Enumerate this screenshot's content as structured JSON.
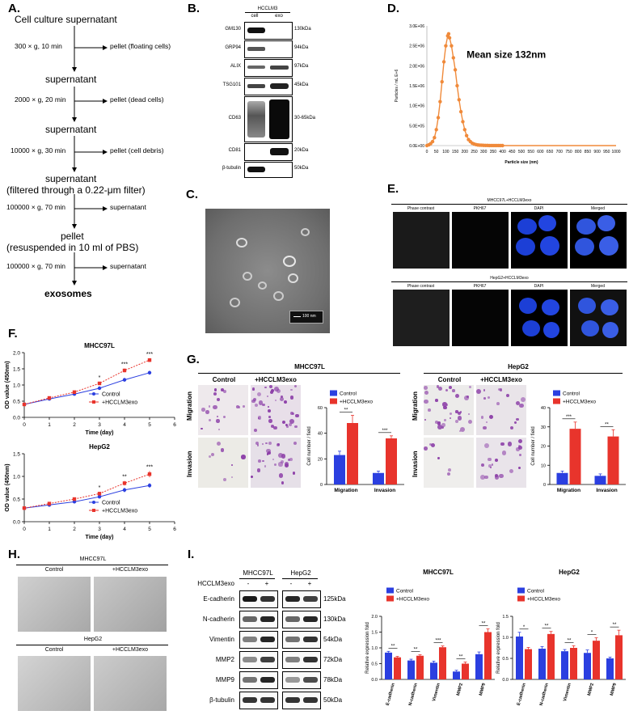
{
  "labels": {
    "A": "A.",
    "B": "B.",
    "C": "C.",
    "D": "D.",
    "E": "E.",
    "F": "F.",
    "G": "G.",
    "H": "H.",
    "I": "I."
  },
  "panelA": {
    "steps": [
      {
        "text": "Cell culture supernatant"
      },
      {
        "text": "supernatant"
      },
      {
        "text": "supernatant"
      },
      {
        "text": "supernatant"
      },
      {
        "text": "(filtered through a 0.22-μm filter)"
      },
      {
        "text": "pellet"
      },
      {
        "text": "(resuspended in 10 ml of PBS)"
      },
      {
        "text": "exosomes"
      }
    ],
    "spins": [
      {
        "cond": "300 × g, 10 min",
        "side": "pellet (floating cells)"
      },
      {
        "cond": "2000 × g, 20 min",
        "side": "pellet (dead cells)"
      },
      {
        "cond": "10000 × g, 30 min",
        "side": "pellet (cell debris)"
      },
      {
        "cond": "100000 × g, 70 min",
        "side": "supernatant"
      },
      {
        "cond": "100000 × g, 70 min",
        "side": "supernatant"
      }
    ]
  },
  "panelB": {
    "header": "HCCLM3",
    "cols": [
      "cell",
      "exo"
    ],
    "rows": [
      {
        "name": "GM130",
        "size": "130kDa"
      },
      {
        "name": "GRP94",
        "size": "94kDa"
      },
      {
        "name": "ALIX",
        "size": "97kDa"
      },
      {
        "name": "TSG101",
        "size": "45kDa"
      },
      {
        "name": "CD63",
        "size": "30-65kDa"
      },
      {
        "name": "CD81",
        "size": "20kDa"
      },
      {
        "name": "β-tubulin",
        "size": "50kDa"
      }
    ]
  },
  "panelC": {
    "scalebar": "100 nm"
  },
  "panelE": {
    "groups": [
      {
        "title": "MHCC97L+HCCLM3exo"
      },
      {
        "title": "HepG2+HCCLM3exo"
      }
    ],
    "cols": [
      "Phase contrast",
      "PKH67",
      "DAPI",
      "Merged"
    ]
  },
  "panelG": {
    "groups": [
      {
        "title": "MHCC97L"
      },
      {
        "title": "HepG2"
      }
    ],
    "cols": [
      "Control",
      "+HCCLM3exo"
    ],
    "rows": [
      "Migration",
      "Invasion"
    ]
  },
  "panelH": {
    "groups": [
      {
        "title": "MHCC97L"
      },
      {
        "title": "HepG2"
      }
    ],
    "cols": [
      "Control",
      "+HCCLM3exo"
    ]
  },
  "panelI": {
    "treat_label": "HCCLM3exo",
    "groups": [
      "MHCC97L",
      "HepG2"
    ],
    "signs": [
      "-",
      "+",
      "-",
      "+"
    ],
    "rows": [
      {
        "name": "E-cadherin",
        "size": "125kDa"
      },
      {
        "name": "N-cadherin",
        "size": "130kDa"
      },
      {
        "name": "Vimentin",
        "size": "54kDa"
      },
      {
        "name": "MMP2",
        "size": "72kDa"
      },
      {
        "name": "MMP9",
        "size": "78kDa"
      },
      {
        "name": "β-tubulin",
        "size": "50kDa"
      }
    ]
  },
  "colors": {
    "control": "#2b3fe0",
    "treated": "#e8342c",
    "nta": "#f08a3a"
  },
  "chart_data": [
    {
      "id": "D",
      "type": "line",
      "xlabel": "Particle size (nm)",
      "ylabel": "Particles / mL E+6",
      "xlim": [
        0,
        1000
      ],
      "ylim": [
        0,
        3000000
      ],
      "xticks": [
        "0",
        "50",
        "100",
        "150",
        "200",
        "250",
        "300",
        "350",
        "400",
        "450",
        "500",
        "550",
        "600",
        "650",
        "700",
        "750",
        "800",
        "850",
        "900",
        "950",
        "1000"
      ],
      "yticks": [
        "0.0E+00",
        "5.0E+05",
        "1.0E+06",
        "1.5E+06",
        "2.0E+06",
        "2.5E+06",
        "3.0E+06"
      ],
      "annotation": "Mean size 132nm",
      "x": [
        0,
        10,
        20,
        30,
        40,
        50,
        60,
        70,
        80,
        90,
        100,
        110,
        115,
        120,
        130,
        140,
        150,
        160,
        170,
        180,
        190,
        200,
        210,
        220,
        230,
        240,
        250,
        260,
        270,
        280,
        290,
        300,
        310,
        320,
        330,
        340,
        350,
        360,
        370,
        380,
        390,
        400
      ],
      "y": [
        0,
        20000,
        50000,
        100000,
        200000,
        400000,
        700000,
        1100000,
        1600000,
        2100000,
        2500000,
        2750000,
        2800000,
        2700000,
        2500000,
        2200000,
        1900000,
        1500000,
        1150000,
        850000,
        600000,
        400000,
        250000,
        150000,
        100000,
        60000,
        40000,
        25000,
        15000,
        10000,
        8000,
        5000,
        4000,
        3000,
        2000,
        1500,
        1000,
        800,
        500,
        300,
        200,
        100
      ]
    },
    {
      "id": "F-top",
      "type": "line",
      "title": "MHCC97L",
      "xlabel": "Time (day)",
      "ylabel": "OD value (450nm)",
      "xlim": [
        0,
        6
      ],
      "ylim": [
        0,
        2.0
      ],
      "xticks": [
        "0",
        "1",
        "2",
        "3",
        "4",
        "5",
        "6"
      ],
      "yticks": [
        "0.0",
        "0.5",
        "1.0",
        "1.5",
        "2.0"
      ],
      "x": [
        0,
        1,
        2,
        3,
        4,
        5
      ],
      "series": [
        {
          "name": "Control",
          "values": [
            0.4,
            0.57,
            0.72,
            0.9,
            1.16,
            1.38
          ],
          "err": [
            0.02,
            0.03,
            0.03,
            0.05,
            0.06,
            0.06
          ]
        },
        {
          "name": "+HCCLM3exo",
          "values": [
            0.4,
            0.6,
            0.78,
            1.05,
            1.45,
            1.77
          ],
          "err": [
            0.02,
            0.03,
            0.04,
            0.05,
            0.06,
            0.06
          ]
        }
      ],
      "sig": [
        "",
        "",
        "",
        "*",
        "***",
        "***"
      ]
    },
    {
      "id": "F-bottom",
      "type": "line",
      "title": "HepG2",
      "xlabel": "Time (day)",
      "ylabel": "OD value (450nm)",
      "xlim": [
        0,
        6
      ],
      "ylim": [
        0,
        1.5
      ],
      "xticks": [
        "0",
        "1",
        "2",
        "3",
        "4",
        "5",
        "6"
      ],
      "yticks": [
        "0.0",
        "0.5",
        "1.0",
        "1.5"
      ],
      "x": [
        0,
        1,
        2,
        3,
        4,
        5
      ],
      "series": [
        {
          "name": "Control",
          "values": [
            0.3,
            0.37,
            0.44,
            0.55,
            0.7,
            0.8
          ],
          "err": [
            0.01,
            0.02,
            0.02,
            0.03,
            0.05,
            0.05
          ]
        },
        {
          "name": "+HCCLM3exo",
          "values": [
            0.3,
            0.4,
            0.5,
            0.62,
            0.85,
            1.05
          ],
          "err": [
            0.01,
            0.02,
            0.03,
            0.04,
            0.05,
            0.07
          ]
        }
      ],
      "sig": [
        "",
        "",
        "",
        "*",
        "**",
        "***"
      ]
    },
    {
      "id": "G-MHCC97L",
      "type": "bar",
      "ylabel": "Cell number / field",
      "ylim": [
        0,
        60
      ],
      "yticks": [
        "0",
        "20",
        "40",
        "60"
      ],
      "categories": [
        "Migration",
        "Invasion"
      ],
      "series": [
        {
          "name": "Control",
          "values": [
            23,
            9
          ],
          "err": [
            3,
            1.5
          ]
        },
        {
          "name": "+HCCLM3exo",
          "values": [
            48,
            36
          ],
          "err": [
            6,
            2
          ]
        }
      ],
      "sig": [
        "**",
        "***"
      ]
    },
    {
      "id": "G-HepG2",
      "type": "bar",
      "ylabel": "Cell number / field",
      "ylim": [
        0,
        40
      ],
      "yticks": [
        "0",
        "10",
        "20",
        "30",
        "40"
      ],
      "categories": [
        "Migration",
        "Invasion"
      ],
      "series": [
        {
          "name": "Control",
          "values": [
            6,
            4.5
          ],
          "err": [
            1,
            1
          ]
        },
        {
          "name": "+HCCLM3exo",
          "values": [
            29,
            25
          ],
          "err": [
            3.5,
            3.5
          ]
        }
      ],
      "sig": [
        "***",
        "**"
      ]
    },
    {
      "id": "I-MHCC97L",
      "type": "bar",
      "title": "MHCC97L",
      "ylabel": "Relative expression fold",
      "ylim": [
        0,
        2.0
      ],
      "yticks": [
        "0.0",
        "0.5",
        "1.0",
        "1.5",
        "2.0"
      ],
      "categories": [
        "E-cadherin",
        "N-cadherin",
        "Vimentin",
        "MMP2",
        "MMP9"
      ],
      "series": [
        {
          "name": "Control",
          "values": [
            0.85,
            0.6,
            0.53,
            0.25,
            0.8
          ],
          "err": [
            0.04,
            0.04,
            0.05,
            0.04,
            0.07
          ]
        },
        {
          "name": "+HCCLM3exo",
          "values": [
            0.7,
            0.75,
            1.02,
            0.5,
            1.5
          ],
          "err": [
            0.03,
            0.03,
            0.04,
            0.05,
            0.1
          ]
        }
      ],
      "sig": [
        "**",
        "**",
        "***",
        "**",
        "**"
      ]
    },
    {
      "id": "I-HepG2",
      "type": "bar",
      "title": "HepG2",
      "ylabel": "Relative expression fold",
      "ylim": [
        0,
        1.5
      ],
      "yticks": [
        "0.0",
        "0.5",
        "1.0",
        "1.5"
      ],
      "categories": [
        "E-cadherin",
        "N-cadherin",
        "Vimentin",
        "MMP2",
        "MMP9"
      ],
      "series": [
        {
          "name": "Control",
          "values": [
            1.02,
            0.73,
            0.67,
            0.63,
            0.5
          ],
          "err": [
            0.1,
            0.05,
            0.04,
            0.07,
            0.03
          ]
        },
        {
          "name": "+HCCLM3exo",
          "values": [
            0.72,
            1.08,
            0.75,
            0.92,
            1.05
          ],
          "err": [
            0.04,
            0.06,
            0.05,
            0.07,
            0.12
          ]
        }
      ],
      "sig": [
        "*",
        "**",
        "**",
        "*",
        "**"
      ]
    }
  ]
}
